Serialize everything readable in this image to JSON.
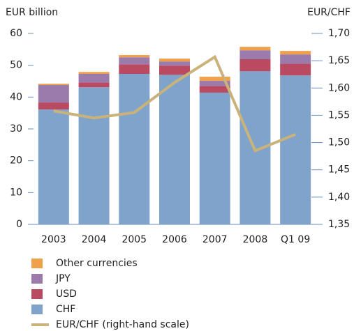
{
  "chart_data": {
    "type": "bar",
    "stacked": true,
    "ylabel": "EUR billion",
    "y2label": "EUR/CHF",
    "categories": [
      "2003",
      "2004",
      "2005",
      "2006",
      "2007",
      "2008",
      "Q1 09"
    ],
    "series": [
      {
        "name": "CHF",
        "color": "#7fa3cb",
        "values": [
          36.1,
          43.1,
          47.3,
          47.0,
          41.4,
          48.1,
          46.8
        ]
      },
      {
        "name": "USD",
        "color": "#b94a62",
        "values": [
          2.2,
          1.5,
          3.0,
          2.9,
          2.1,
          3.8,
          3.7
        ]
      },
      {
        "name": "JPY",
        "color": "#9a7bab",
        "values": [
          5.5,
          2.7,
          2.2,
          1.3,
          1.6,
          2.8,
          2.9
        ]
      },
      {
        "name": "Other currencies",
        "color": "#f0a04b",
        "values": [
          0.4,
          0.6,
          0.7,
          0.9,
          1.3,
          1.1,
          1.1
        ]
      },
      {
        "name": "EUR/CHF (right-hand scale)",
        "type": "line",
        "axis": "y2",
        "color": "#c9b37a",
        "values": [
          1.558,
          1.545,
          1.555,
          1.61,
          1.657,
          1.485,
          1.515
        ]
      }
    ],
    "ylim": [
      0,
      60
    ],
    "yticks": [
      0,
      10,
      20,
      30,
      40,
      50,
      60
    ],
    "y2lim": [
      1.35,
      1.7
    ],
    "y2ticks": [
      {
        "value": 1.35,
        "label": "1,35"
      },
      {
        "value": 1.4,
        "label": "1,40"
      },
      {
        "value": 1.45,
        "label": "1,45"
      },
      {
        "value": 1.5,
        "label": "1,50"
      },
      {
        "value": 1.55,
        "label": "1,55"
      },
      {
        "value": 1.6,
        "label": "1,60"
      },
      {
        "value": 1.65,
        "label": "1,65"
      },
      {
        "value": 1.7,
        "label": "1,70"
      }
    ],
    "grid": false
  }
}
